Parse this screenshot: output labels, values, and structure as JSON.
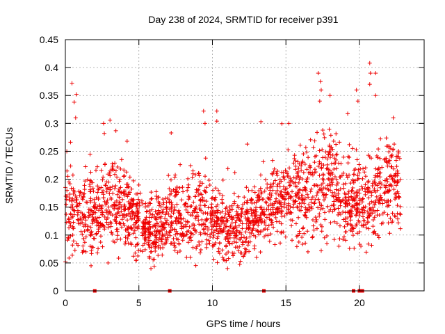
{
  "chart_data": {
    "type": "scatter",
    "title": "Day 238 of 2024, SRMTID for receiver p391",
    "xlabel": "GPS time / hours",
    "ylabel": "SRMTID / TECUs",
    "xlim": [
      0,
      24.4
    ],
    "ylim": [
      0,
      0.45
    ],
    "xticks": [
      0,
      5,
      10,
      15,
      20
    ],
    "yticks": [
      0,
      0.05,
      0.1,
      0.15,
      0.2,
      0.25,
      0.3,
      0.35,
      0.4,
      0.45
    ],
    "grid": true,
    "marker": "+",
    "color": "#ee0000",
    "envelope": {
      "x": [
        0,
        0.5,
        1,
        2,
        3,
        4,
        5,
        6,
        7,
        8,
        9,
        10,
        11,
        12,
        13,
        14,
        15,
        16,
        17,
        18,
        19,
        20,
        21,
        22,
        23
      ],
      "y": [
        0.15,
        0.14,
        0.13,
        0.14,
        0.16,
        0.15,
        0.12,
        0.115,
        0.13,
        0.125,
        0.14,
        0.12,
        0.11,
        0.11,
        0.13,
        0.15,
        0.17,
        0.17,
        0.19,
        0.2,
        0.17,
        0.15,
        0.17,
        0.19,
        0.16
      ],
      "spread": [
        0.055,
        0.06,
        0.05,
        0.05,
        0.05,
        0.05,
        0.04,
        0.04,
        0.045,
        0.045,
        0.05,
        0.045,
        0.04,
        0.04,
        0.045,
        0.045,
        0.05,
        0.055,
        0.06,
        0.065,
        0.055,
        0.05,
        0.06,
        0.055,
        0.05
      ],
      "samples_per_hour": 95,
      "end_hour": 22.8
    },
    "highlights": [
      {
        "x": 0.45,
        "y": 0.372
      },
      {
        "x": 0.6,
        "y": 0.338
      },
      {
        "x": 0.75,
        "y": 0.352
      },
      {
        "x": 0.7,
        "y": 0.31
      },
      {
        "x": 2.6,
        "y": 0.3
      },
      {
        "x": 2.65,
        "y": 0.282
      },
      {
        "x": 4.2,
        "y": 0.268
      },
      {
        "x": 7.2,
        "y": 0.283
      },
      {
        "x": 9.4,
        "y": 0.322
      },
      {
        "x": 9.5,
        "y": 0.3
      },
      {
        "x": 10.3,
        "y": 0.322
      },
      {
        "x": 10.3,
        "y": 0.304
      },
      {
        "x": 13.3,
        "y": 0.303
      },
      {
        "x": 15.2,
        "y": 0.3
      },
      {
        "x": 17.2,
        "y": 0.39
      },
      {
        "x": 17.35,
        "y": 0.375
      },
      {
        "x": 17.4,
        "y": 0.36
      },
      {
        "x": 17.3,
        "y": 0.34
      },
      {
        "x": 18.0,
        "y": 0.35
      },
      {
        "x": 19.8,
        "y": 0.36
      },
      {
        "x": 19.9,
        "y": 0.34
      },
      {
        "x": 20.7,
        "y": 0.408
      },
      {
        "x": 20.75,
        "y": 0.39
      },
      {
        "x": 20.7,
        "y": 0.37
      },
      {
        "x": 21.1,
        "y": 0.39
      },
      {
        "x": 21.1,
        "y": 0.35
      },
      {
        "x": 22.3,
        "y": 0.31
      },
      {
        "x": 0.1,
        "y": 0.25
      },
      {
        "x": 1.4,
        "y": 0.07
      },
      {
        "x": 1.75,
        "y": 0.045
      },
      {
        "x": 2.9,
        "y": 0.05
      },
      {
        "x": 4.8,
        "y": 0.055
      },
      {
        "x": 8.5,
        "y": 0.06
      },
      {
        "x": 10.7,
        "y": 0.06
      },
      {
        "x": 13.0,
        "y": 0.06
      },
      {
        "x": 16.5,
        "y": 0.07
      },
      {
        "x": 17.4,
        "y": 0.072
      },
      {
        "x": 18.6,
        "y": 0.08
      },
      {
        "x": 20.1,
        "y": 0.08
      }
    ],
    "zero_points": [
      2.0,
      7.1,
      13.5,
      19.6,
      20.0,
      20.2
    ]
  }
}
